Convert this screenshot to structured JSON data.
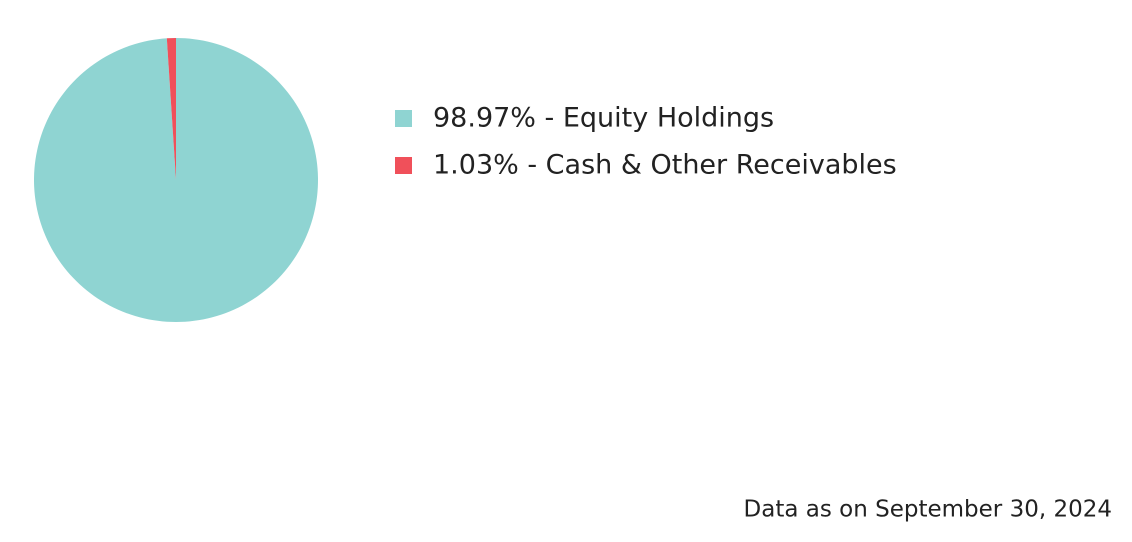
{
  "chart_data": {
    "type": "pie",
    "categories": [
      "98.97% - Equity Holdings",
      "1.03% - Cash & Other Receivables"
    ],
    "values": [
      98.97,
      1.03
    ],
    "colors": [
      "#8fd4d2",
      "#f0505a"
    ],
    "note": "Data as on September 30, 2024"
  }
}
